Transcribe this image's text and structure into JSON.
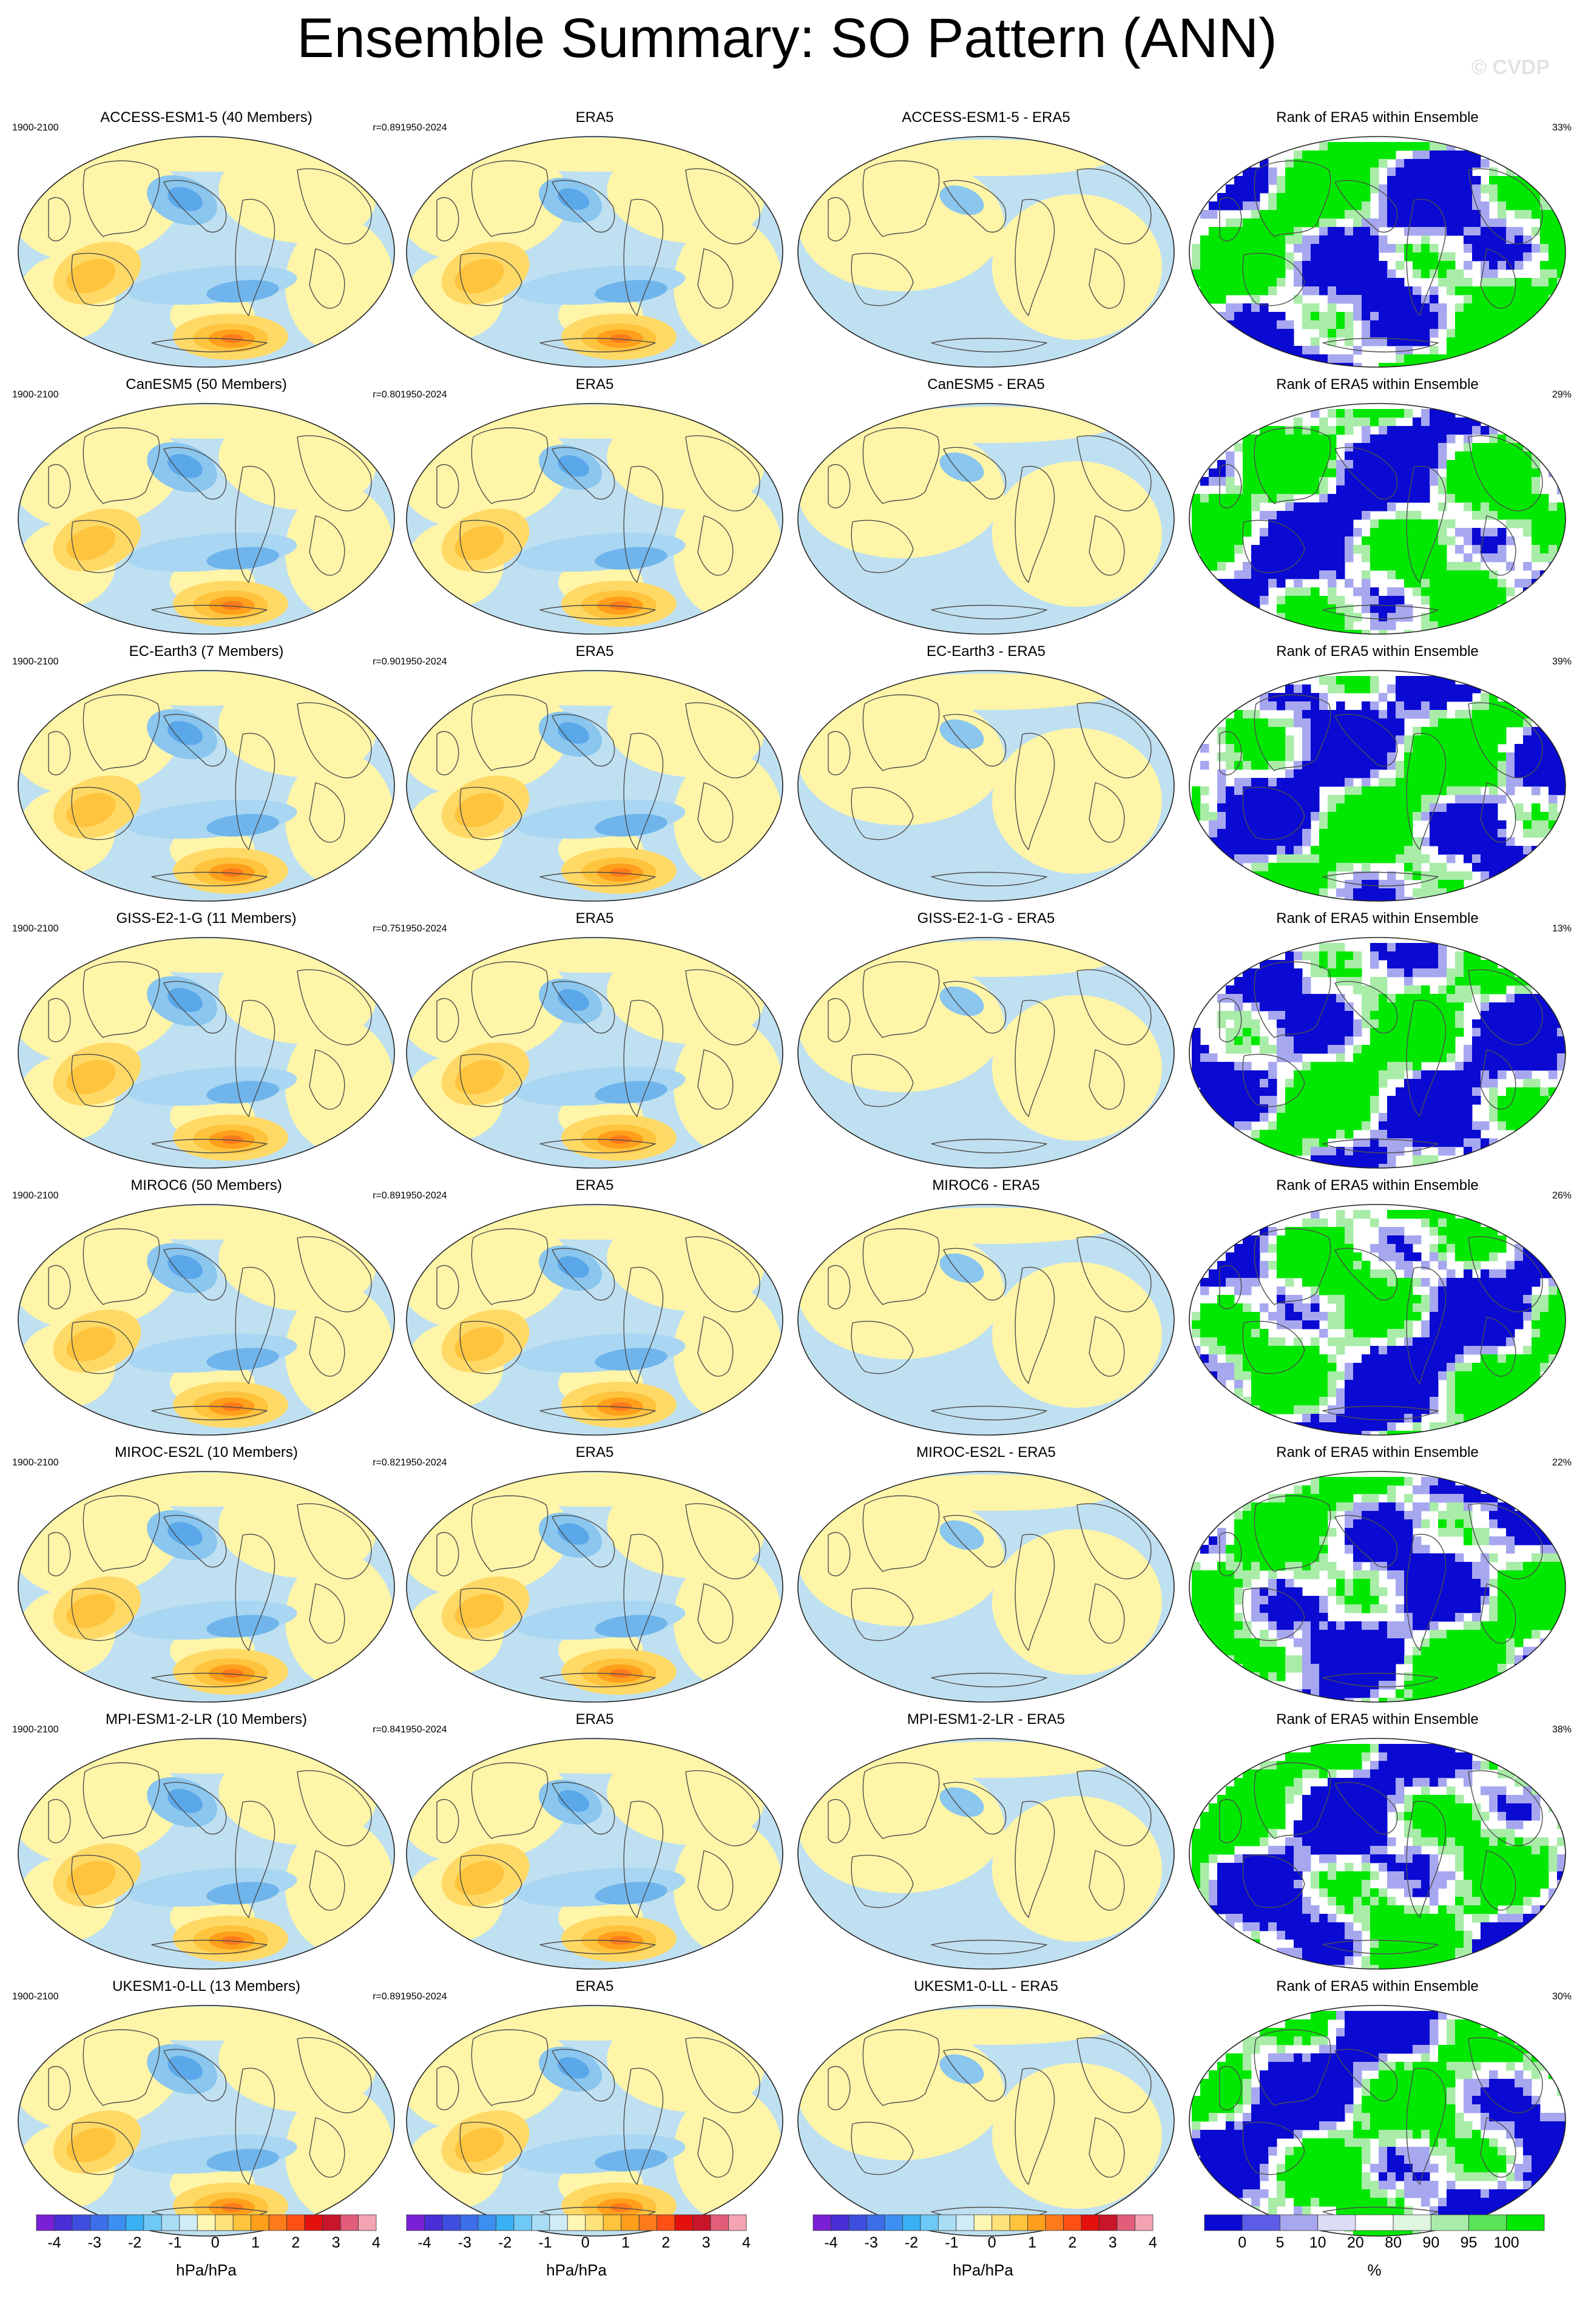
{
  "title": "Ensemble Summary: SO Pattern (ANN)",
  "watermark": "© CVDP",
  "rows": [
    {
      "model_title": "ACCESS-ESM1-5 (40 Members)",
      "period": "1900-2100",
      "r": "r=0.89",
      "era5_title": "ERA5",
      "era5_period": "1950-2024",
      "diff_title": "ACCESS-ESM1-5 - ERA5",
      "rank_title": "Rank of ERA5 within Ensemble",
      "rank_pct": "33%"
    },
    {
      "model_title": "CanESM5 (50 Members)",
      "period": "1900-2100",
      "r": "r=0.80",
      "era5_title": "ERA5",
      "era5_period": "1950-2024",
      "diff_title": "CanESM5 - ERA5",
      "rank_title": "Rank of ERA5 within Ensemble",
      "rank_pct": "29%"
    },
    {
      "model_title": "EC-Earth3 (7 Members)",
      "period": "1900-2100",
      "r": "r=0.90",
      "era5_title": "ERA5",
      "era5_period": "1950-2024",
      "diff_title": "EC-Earth3 - ERA5",
      "rank_title": "Rank of ERA5 within Ensemble",
      "rank_pct": "39%"
    },
    {
      "model_title": "GISS-E2-1-G (11 Members)",
      "period": "1900-2100",
      "r": "r=0.75",
      "era5_title": "ERA5",
      "era5_period": "1950-2024",
      "diff_title": "GISS-E2-1-G - ERA5",
      "rank_title": "Rank of ERA5 within Ensemble",
      "rank_pct": "13%"
    },
    {
      "model_title": "MIROC6 (50 Members)",
      "period": "1900-2100",
      "r": "r=0.89",
      "era5_title": "ERA5",
      "era5_period": "1950-2024",
      "diff_title": "MIROC6 - ERA5",
      "rank_title": "Rank of ERA5 within Ensemble",
      "rank_pct": "26%"
    },
    {
      "model_title": "MIROC-ES2L (10 Members)",
      "period": "1900-2100",
      "r": "r=0.82",
      "era5_title": "ERA5",
      "era5_period": "1950-2024",
      "diff_title": "MIROC-ES2L - ERA5",
      "rank_title": "Rank of ERA5 within Ensemble",
      "rank_pct": "22%"
    },
    {
      "model_title": "MPI-ESM1-2-LR (10 Members)",
      "period": "1900-2100",
      "r": "r=0.84",
      "era5_title": "ERA5",
      "era5_period": "1950-2024",
      "diff_title": "MPI-ESM1-2-LR - ERA5",
      "rank_title": "Rank of ERA5 within Ensemble",
      "rank_pct": "38%"
    },
    {
      "model_title": "UKESM1-0-LL (13 Members)",
      "period": "1900-2100",
      "r": "r=0.89",
      "era5_title": "ERA5",
      "era5_period": "1950-2024",
      "diff_title": "UKESM1-0-LL - ERA5",
      "rank_title": "Rank of ERA5 within Ensemble",
      "rank_pct": "30%"
    }
  ],
  "colorbars": {
    "pattern": {
      "unit": "hPa/hPa",
      "tick_labels": [
        "-4",
        "-3",
        "-2",
        "-1",
        "0",
        "1",
        "2",
        "3",
        "4"
      ],
      "colors": [
        "#7a1fd6",
        "#4a2fd9",
        "#3e4fe0",
        "#3b6ee8",
        "#3c8ff0",
        "#39b0f4",
        "#6fc9f7",
        "#a9dcf5",
        "#d0ecf7",
        "#fff8b3",
        "#ffe27a",
        "#ffc43d",
        "#ff9f1c",
        "#ff7a1a",
        "#ff4f14",
        "#e3100d",
        "#c8152a",
        "#e25d7a",
        "#f4a3b3"
      ]
    },
    "difference": {
      "unit": "hPa/hPa",
      "tick_labels": [
        "-4",
        "-3",
        "-2",
        "-1",
        "0",
        "1",
        "2",
        "3",
        "4"
      ],
      "colors": [
        "#7a1fd6",
        "#4a2fd9",
        "#3e4fe0",
        "#3b6ee8",
        "#3c8ff0",
        "#39b0f4",
        "#6fc9f7",
        "#a9dcf5",
        "#d0ecf7",
        "#fff8b3",
        "#ffe27a",
        "#ffc43d",
        "#ff9f1c",
        "#ff7a1a",
        "#ff4f14",
        "#e3100d",
        "#c8152a",
        "#e25d7a",
        "#f4a3b3"
      ]
    },
    "rank": {
      "unit": "%",
      "tick_labels": [
        "0",
        "5",
        "10",
        "20",
        "80",
        "90",
        "95",
        "100"
      ],
      "colors": [
        "#0a0ad2",
        "#5c5ce6",
        "#a7a7f0",
        "#dcdcf7",
        "#ffffff",
        "#dff5df",
        "#a8eca8",
        "#5ae45a",
        "#00e800"
      ]
    }
  },
  "colors": {
    "ocean": "#bfe0f0",
    "land_positive": "#fff5a8",
    "strong_negative": "#3c8ff0",
    "positive_core": "#ff7a1a",
    "rank_low": "#0a0ad2",
    "rank_high": "#00e800"
  }
}
